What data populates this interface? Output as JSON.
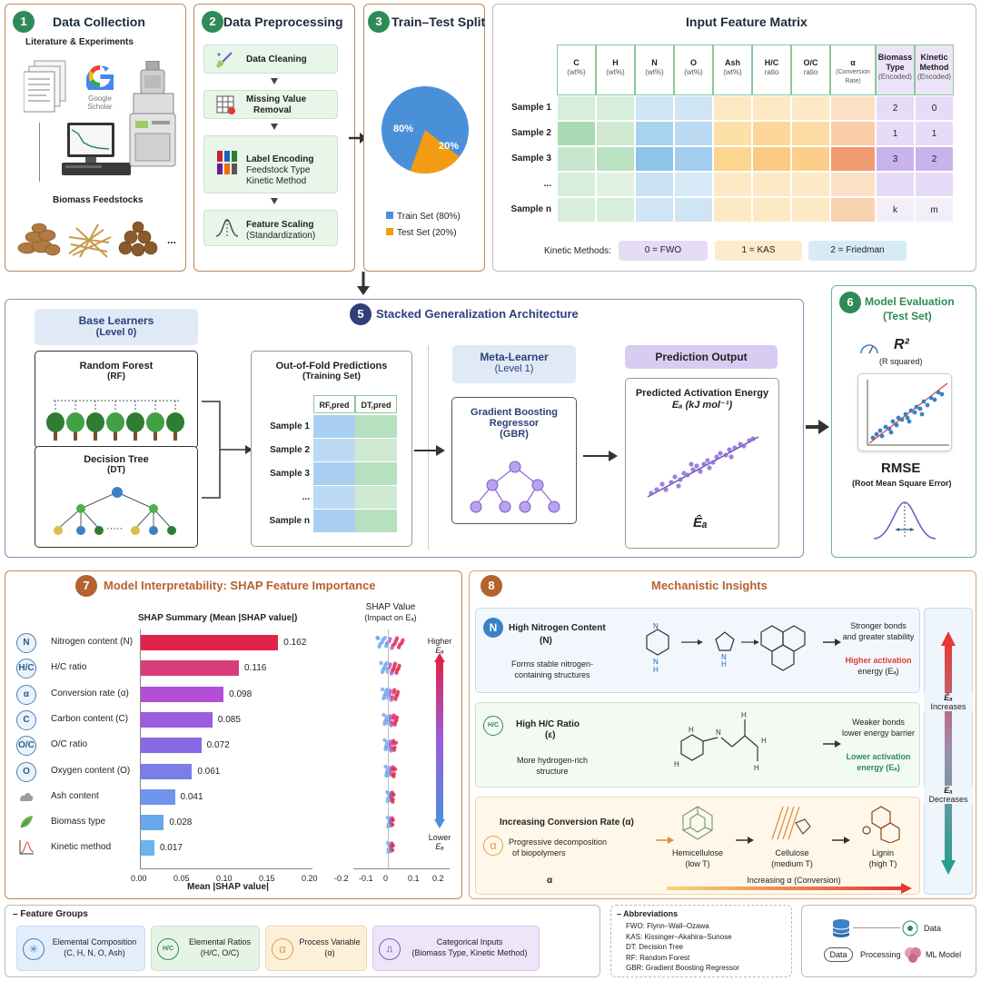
{
  "panel1": {
    "num": "1",
    "title": "Data Collection",
    "subtitle": "Literature & Experiments",
    "google": "Google",
    "scholar": "Scholar",
    "feedstock_title": "Biomass Feedstocks",
    "ellipsis": "..."
  },
  "panel2": {
    "num": "2",
    "title": "Data Preprocessing",
    "steps": [
      {
        "l1": "Data Cleaning",
        "l2": "",
        "l3": ""
      },
      {
        "l1": "Missing Value",
        "l2": "Removal",
        "l3": ""
      },
      {
        "l1": "Label Encoding",
        "l2": "Feedstock Type",
        "l3": "Kinetic Method"
      },
      {
        "l1": "Feature Scaling",
        "l2": "(Standardization)",
        "l3": ""
      }
    ]
  },
  "panel3": {
    "num": "3",
    "title": "Train–Test Split",
    "train_pct": 80,
    "test_pct": 20,
    "train_label": "80%",
    "test_label": "20%",
    "legend_train": "Train Set (80%)",
    "legend_test": "Test Set (20%)"
  },
  "panel4": {
    "title": "Input Feature Matrix",
    "columns": [
      {
        "l1": "C",
        "l2": "(wt%)"
      },
      {
        "l1": "H",
        "l2": "(wt%)"
      },
      {
        "l1": "N",
        "l2": "(wt%)"
      },
      {
        "l1": "O",
        "l2": "(wt%)"
      },
      {
        "l1": "Ash",
        "l2": "(wt%)"
      },
      {
        "l1": "H/C",
        "l2": "ratio"
      },
      {
        "l1": "O/C",
        "l2": "ratio"
      },
      {
        "l1": "α",
        "l2": "(Conversion Rate)"
      },
      {
        "l1": "Biomass Type",
        "l2": "(Encoded)"
      },
      {
        "l1": "Kinetic Method",
        "l2": "(Encoded)"
      }
    ],
    "rows": [
      "Sample 1",
      "Sample 2",
      "Sample 3",
      "...",
      "Sample n"
    ],
    "biomass_vals": [
      "2",
      "1",
      "3",
      "",
      "k"
    ],
    "kinetic_vals": [
      "0",
      "1",
      "2",
      "",
      "m"
    ],
    "kinetic_label": "Kinetic Methods:",
    "methods": [
      "0 = FWO",
      "1 = KAS",
      "2 = Friedman"
    ]
  },
  "panel5": {
    "num": "5",
    "title": "Stacked Generalization Architecture",
    "base_title": "Base Learners",
    "base_sub": "(Level 0)",
    "rf": "Random Forest",
    "rf_abbr": "(RF)",
    "dt": "Decision Tree",
    "dt_abbr": "(DT)",
    "dt_ellipsis": "·····",
    "oof_title": "Out-of-Fold Predictions",
    "oof_sub": "(Training Set)",
    "oof_cols": [
      "RF,pred",
      "DT,pred"
    ],
    "oof_rows": [
      "Sample 1",
      "Sample 2",
      "Sample 3",
      "...",
      "Sample n"
    ],
    "meta_title": "Meta-Learner",
    "meta_sub": "(Level 1)",
    "gbr_l1": "Gradient Boosting",
    "gbr_l2": "Regressor",
    "gbr_l3": "(GBR)",
    "pred_title": "Prediction Output",
    "pred_l1": "Predicted Activation Energy",
    "pred_l2": "Eₐ (kJ mol⁻¹)",
    "pred_symbol": "Êₐ"
  },
  "panel6": {
    "num": "6",
    "title": "Model Evaluation",
    "title2": "(Test Set)",
    "r2": "R²",
    "r2_sub": "(R squared)",
    "rmse": "RMSE",
    "rmse_sub": "(Root Mean Square Error)"
  },
  "panel7": {
    "num": "7",
    "title": "Model Interpretability: SHAP Feature Importance",
    "summary_title": "SHAP Summary (Mean |SHAP value|)",
    "shap_title": "SHAP Value",
    "shap_sub": "(Impact on Eₐ)",
    "higher": "Higher",
    "lower": "Lower",
    "ea": "Eₐ",
    "xlabel": "Mean |SHAP value|",
    "icons": [
      "N",
      "H/C",
      "α",
      "C",
      "O/C",
      "O",
      "",
      "",
      ""
    ],
    "icon_names": [
      "nitrogen-icon",
      "hc-ratio-icon",
      "alpha-icon",
      "carbon-icon",
      "oc-ratio-icon",
      "oxygen-icon",
      "ash-icon",
      "leaf-icon",
      "kinetic-curve-icon"
    ],
    "x_ticks": [
      "0.00",
      "0.05",
      "0.10",
      "0.15",
      "0.20"
    ],
    "shap_ticks": [
      "-0.2",
      "-0.1",
      "0",
      "0.1",
      "0.2"
    ]
  },
  "panel8": {
    "num": "8",
    "title": "Mechanistic Insights",
    "n_title": "High Nitrogen Content",
    "n_sub": "(N)",
    "n_desc1": "Forms stable nitrogen-",
    "n_desc2": "containing structures",
    "n_r1": "Stronger bonds",
    "n_r2": "and greater stability",
    "n_r3": "Higher activation",
    "n_r4": "energy (Eₐ)",
    "h_title": "High H/C Ratio",
    "h_sub": "(ε)",
    "h_desc1": "More hydrogen-rich",
    "h_desc2": "structure",
    "h_r1": "Weaker bonds",
    "h_r2": "lower energy barrier",
    "h_r3": "Lower activation",
    "h_r4": "energy (Eₐ)",
    "a_title": "Increasing Conversion Rate (α)",
    "a_desc1": "Progressive decomposition",
    "a_desc2": "of biopolymers",
    "a_sym": "α",
    "hemi": "Hemicellulose",
    "hemi_t": "(low T)",
    "cell": "Cellulose",
    "cell_t": "(medium T)",
    "lig": "Lignin",
    "lig_t": "(high T)",
    "increasing": "Increasing α (Conversion)",
    "ea_inc": "Êₐ",
    "increases": "Increases",
    "ea_dec": "Eₐ",
    "decreases": "Decreases"
  },
  "legend": {
    "title": "Feature Groups",
    "groups": [
      {
        "l1": "Elemental Composition",
        "l2": "(C, H, N, O, Ash)"
      },
      {
        "l1": "Elemental Ratios",
        "l2": "(H/C, O/C)"
      },
      {
        "l1": "Process Variable",
        "l2": "(α)"
      },
      {
        "l1": "Categorical Inputs",
        "l2": "(Biomass Type, Kinetic Method)"
      }
    ],
    "hc": "H/C"
  },
  "abbrev": {
    "title": "Abbreviations",
    "items": [
      "FWO: Flynn–Wall–Ozawa",
      "KAS: Kissinger–Akahira–Sunose",
      "DT: Decision Tree",
      "RF: Random Forest",
      "GBR: Gradient Boosting Regressor"
    ]
  },
  "keybox": {
    "data": "Data",
    "data2": "Data",
    "processing": "Processing",
    "model": "ML Model"
  },
  "chart_data": {
    "type": "bar",
    "title": "SHAP Summary (Mean |SHAP value|)",
    "xlabel": "Mean |SHAP value|",
    "categories": [
      "Nitrogen content (N)",
      "H/C ratio",
      "Conversion rate (α)",
      "Carbon content (C)",
      "O/C ratio",
      "Oxygen content (O)",
      "Ash content",
      "Biomass type",
      "Kinetic method"
    ],
    "values": [
      0.162,
      0.116,
      0.098,
      0.085,
      0.072,
      0.061,
      0.041,
      0.028,
      0.017
    ],
    "value_labels": [
      "0.162",
      "0.116",
      "0.098",
      "0.085",
      "0.072",
      "0.061",
      "0.041",
      "0.028",
      "0.017"
    ],
    "xlim": [
      0,
      0.2
    ],
    "colors": [
      "#e0234a",
      "#d93c7a",
      "#b24fd6",
      "#9b5ce0",
      "#8a6ae4",
      "#7a7ee6",
      "#6f96ea",
      "#6aa8ee",
      "#6ab4f0"
    ]
  }
}
